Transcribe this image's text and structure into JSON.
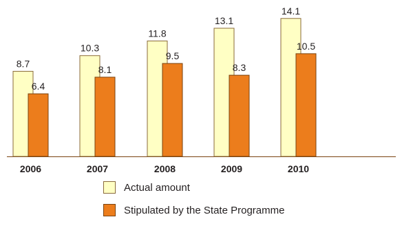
{
  "chart_data": {
    "type": "bar",
    "categories": [
      "2006",
      "2007",
      "2008",
      "2009",
      "2010"
    ],
    "series": [
      {
        "name": "Actual amount",
        "values": [
          8.7,
          10.3,
          11.8,
          13.1,
          14.1
        ],
        "color": "#ffffc4",
        "stroke": "#8a6a3a"
      },
      {
        "name": "Stipulated by the State Programme",
        "values": [
          6.4,
          8.1,
          9.5,
          8.3,
          10.5
        ],
        "color": "#ec7d1c",
        "stroke": "#7a4310"
      }
    ],
    "ylim": [
      0,
      16
    ],
    "grid": false,
    "legend_position": "bottom"
  }
}
